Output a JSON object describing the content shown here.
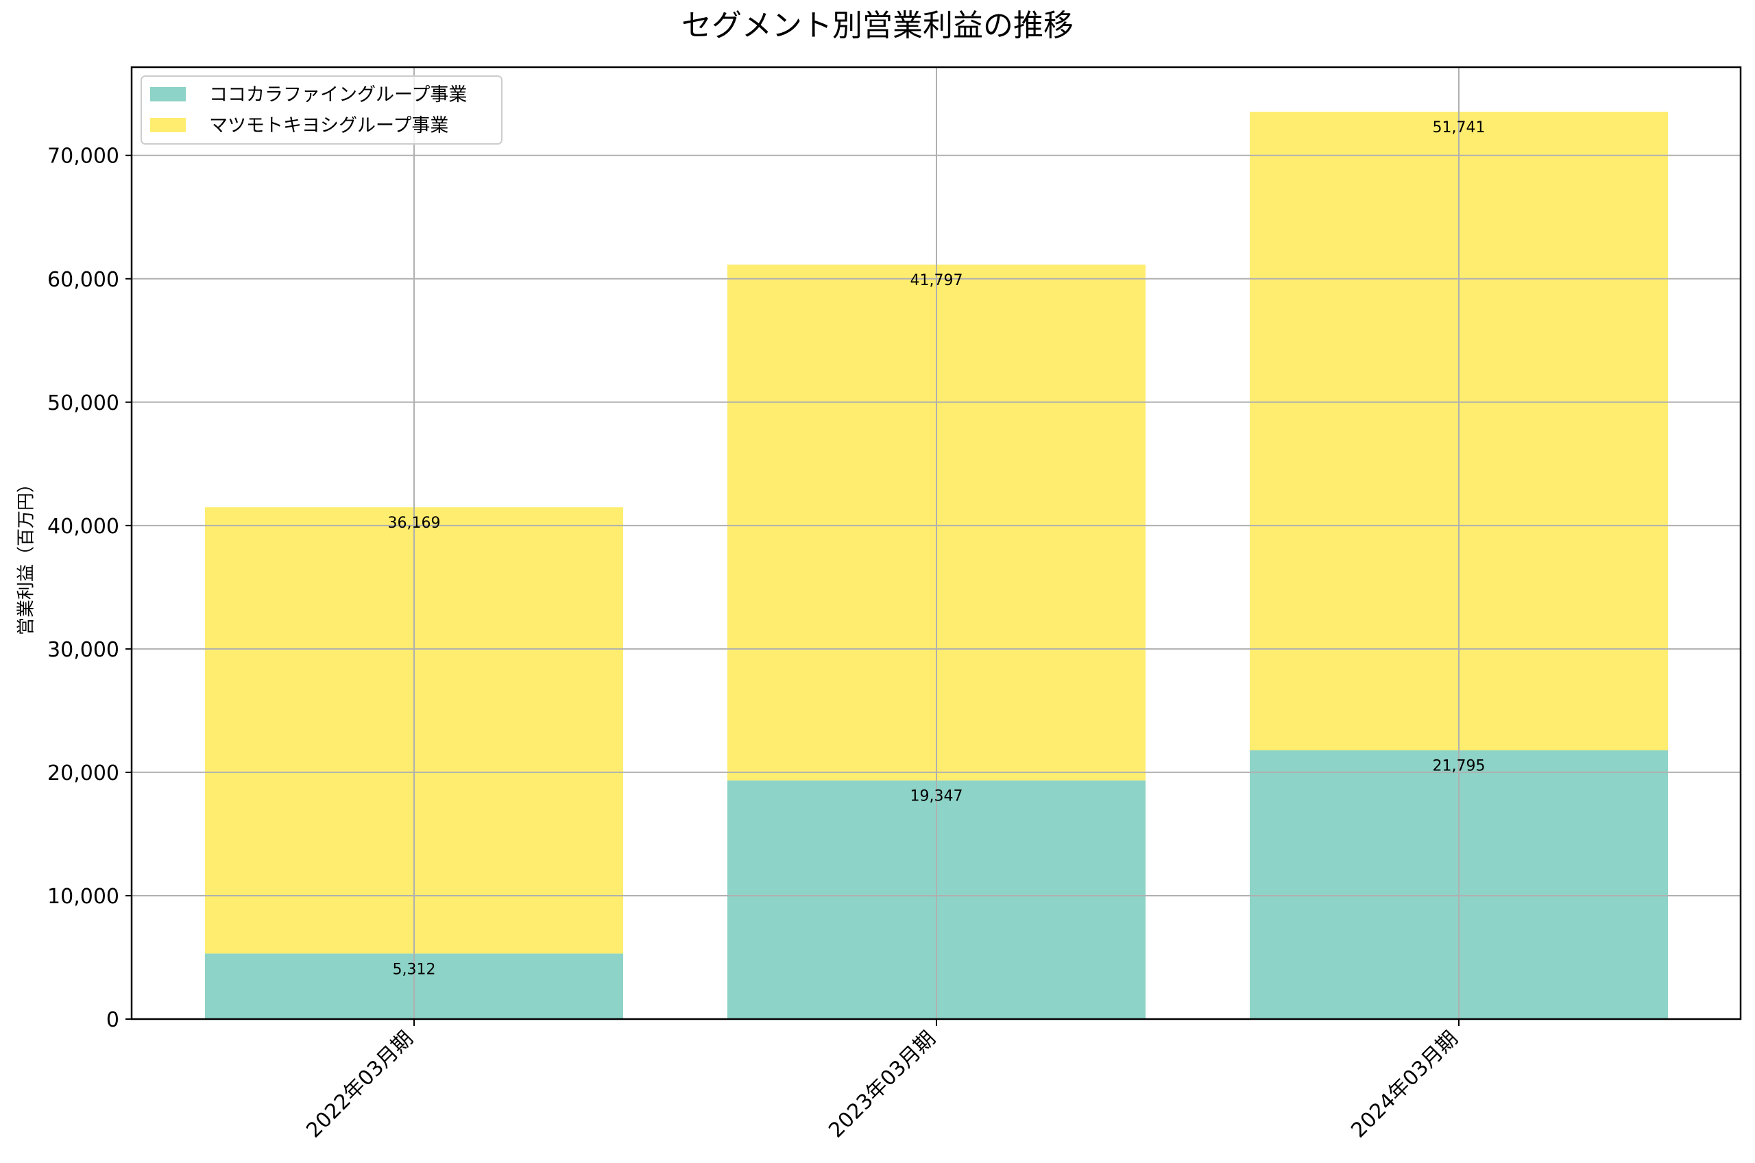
{
  "title": "セグメント別営業利益の推移",
  "chart_data": {
    "type": "bar",
    "stacked": true,
    "title": "セグメント別営業利益の推移",
    "xlabel": "",
    "ylabel": "営業利益（百万円）",
    "categories": [
      "2022年03月期",
      "2023年03月期",
      "2024年03月期"
    ],
    "series": [
      {
        "name": "ココカラファイングループ事業",
        "color": "#8dd3c7",
        "values": [
          5312,
          19347,
          21795
        ],
        "labels": [
          "5,312",
          "19,347",
          "21,795"
        ]
      },
      {
        "name": "マツモトキヨシグループ事業",
        "color": "#ffed6f",
        "values": [
          36169,
          41797,
          51741
        ],
        "labels": [
          "36,169",
          "41,797",
          "51,741"
        ]
      }
    ],
    "ylim": [
      0,
      77150
    ],
    "yticks": [
      0,
      10000,
      20000,
      30000,
      40000,
      50000,
      60000,
      70000
    ],
    "ytick_labels": [
      "0",
      "10,000",
      "20,000",
      "30,000",
      "40,000",
      "50,000",
      "60,000",
      "70,000"
    ],
    "grid": true,
    "legend_position": "upper left",
    "xtick_rotation": -45
  },
  "legend": {
    "items": [
      {
        "label": "ココカラファイングループ事業",
        "color": "#8dd3c7"
      },
      {
        "label": "マツモトキヨシグループ事業",
        "color": "#ffed6f"
      }
    ]
  }
}
